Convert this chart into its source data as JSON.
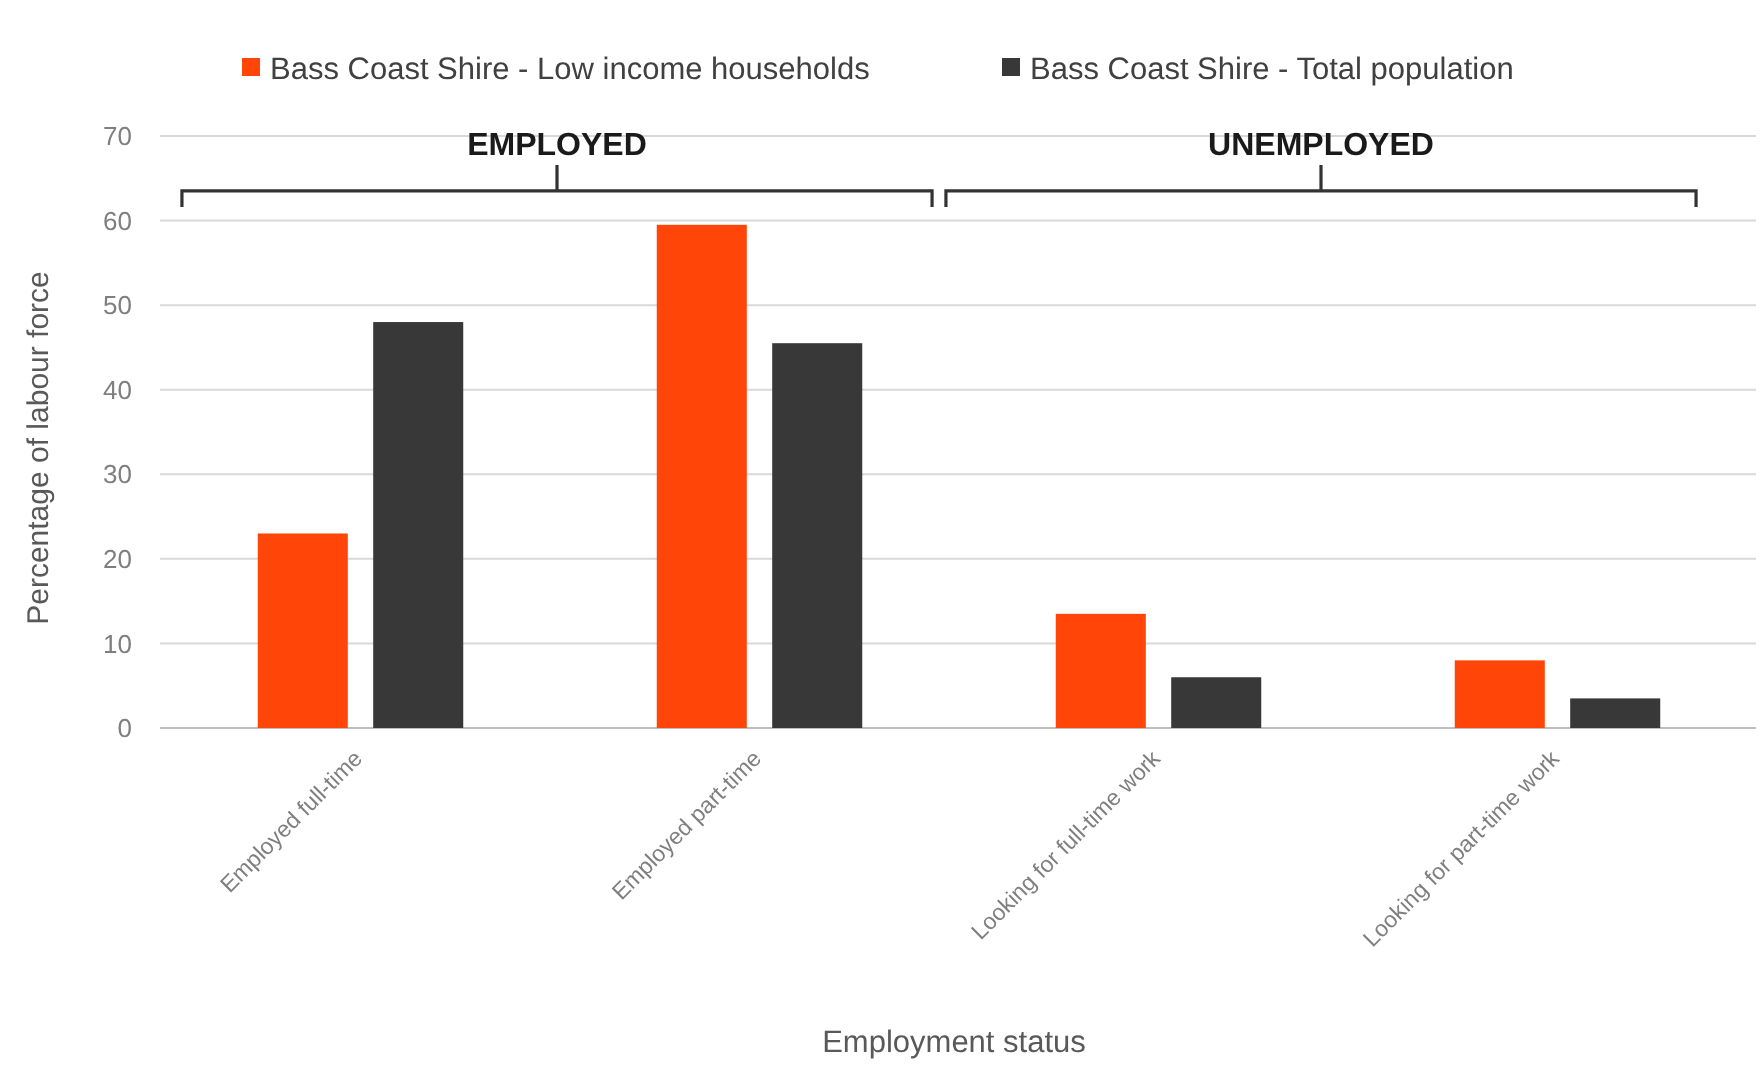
{
  "chart_data": {
    "type": "bar",
    "categories": [
      "Employed full-time",
      "Employed part-time",
      "Looking for full-time work",
      "Looking for part-time work"
    ],
    "series": [
      {
        "name": "Bass Coast Shire - Low income households",
        "color": "#ff4508",
        "values": [
          23,
          59.5,
          13.5,
          8
        ]
      },
      {
        "name": "Bass Coast Shire - Total population",
        "color": "#383838",
        "values": [
          48,
          45.5,
          6,
          3.5
        ]
      }
    ],
    "xlabel": "Employment status",
    "ylabel": "Percentage of labour force",
    "annotations": [
      "EMPLOYED",
      "UNEMPLOYED"
    ],
    "ylim": [
      0,
      70
    ],
    "yticks": [
      0,
      10,
      20,
      30,
      40,
      50,
      60,
      70
    ],
    "grid": "y",
    "legend": "top"
  }
}
